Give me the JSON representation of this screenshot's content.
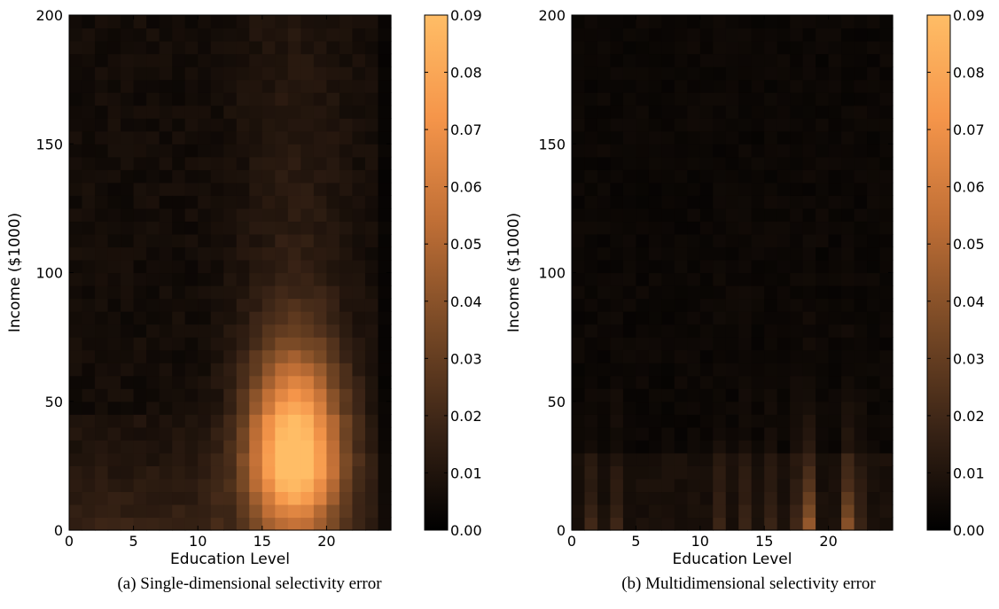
{
  "chart_data": [
    {
      "type": "heatmap",
      "caption": "(a) Single-dimensional selectivity error",
      "xlabel": "Education Level",
      "ylabel": "Income ($1000)",
      "xlim": [
        0,
        25
      ],
      "ylim": [
        0,
        200
      ],
      "x_ticks": [
        0,
        5,
        10,
        15,
        20
      ],
      "y_ticks": [
        0,
        50,
        100,
        150,
        200
      ],
      "colorbar": {
        "vmin": 0.0,
        "vmax": 0.09,
        "ticks": [
          "0.00",
          "0.01",
          "0.02",
          "0.03",
          "0.04",
          "0.05",
          "0.06",
          "0.07",
          "0.08",
          "0.09"
        ]
      },
      "colormap": [
        "#000000",
        "#3a2416",
        "#7a4a26",
        "#c06f36",
        "#f5954a",
        "#ffbd66"
      ],
      "x_bins": [
        0,
        1,
        2,
        3,
        4,
        5,
        6,
        7,
        8,
        9,
        10,
        11,
        12,
        13,
        14,
        15,
        16,
        17,
        18,
        19,
        20,
        21,
        22,
        23,
        24
      ],
      "y_bins": [
        0,
        5,
        10,
        15,
        20,
        25,
        30,
        35,
        40,
        45,
        50,
        55,
        60,
        65,
        70,
        75,
        80,
        85,
        90,
        95,
        100,
        105,
        110,
        115,
        120,
        125,
        130,
        135,
        140,
        145,
        150,
        155,
        160,
        165,
        170,
        175,
        180,
        185,
        190,
        195
      ],
      "structure": {
        "peak_value": 0.08,
        "peak_center": [
          17.5,
          28
        ],
        "peak_spread_x": 2.5,
        "peak_spread_y": 28,
        "floor_value": 0.006,
        "tail_value": 0.015
      }
    },
    {
      "type": "heatmap",
      "caption": "(b) Multidimensional selectivity error",
      "xlabel": "Education Level",
      "ylabel": "Income ($1000)",
      "xlim": [
        0,
        25
      ],
      "ylim": [
        0,
        200
      ],
      "x_ticks": [
        0,
        5,
        10,
        15,
        20
      ],
      "y_ticks": [
        0,
        50,
        100,
        150,
        200
      ],
      "colorbar": {
        "vmin": 0.0,
        "vmax": 0.09,
        "ticks": [
          "0.00",
          "0.01",
          "0.02",
          "0.03",
          "0.04",
          "0.05",
          "0.06",
          "0.07",
          "0.08",
          "0.09"
        ]
      },
      "colormap": [
        "#000000",
        "#3a2416",
        "#7a4a26",
        "#c06f36",
        "#f5954a",
        "#ffbd66"
      ],
      "x_bins": [
        0,
        1,
        2,
        3,
        4,
        5,
        6,
        7,
        8,
        9,
        10,
        11,
        12,
        13,
        14,
        15,
        16,
        17,
        18,
        19,
        20,
        21,
        22,
        23,
        24
      ],
      "y_bins": [
        0,
        5,
        10,
        15,
        20,
        25,
        30,
        35,
        40,
        45,
        50,
        55,
        60,
        65,
        70,
        75,
        80,
        85,
        90,
        95,
        100,
        105,
        110,
        115,
        120,
        125,
        130,
        135,
        140,
        145,
        150,
        155,
        160,
        165,
        170,
        175,
        180,
        185,
        190,
        195
      ],
      "structure": {
        "bright_columns": [
          {
            "x": 18,
            "value": 0.04
          },
          {
            "x": 21,
            "value": 0.035
          }
        ],
        "dim_columns": [
          1,
          3,
          11,
          13,
          15,
          17,
          22
        ],
        "floor_value": 0.004
      }
    }
  ]
}
